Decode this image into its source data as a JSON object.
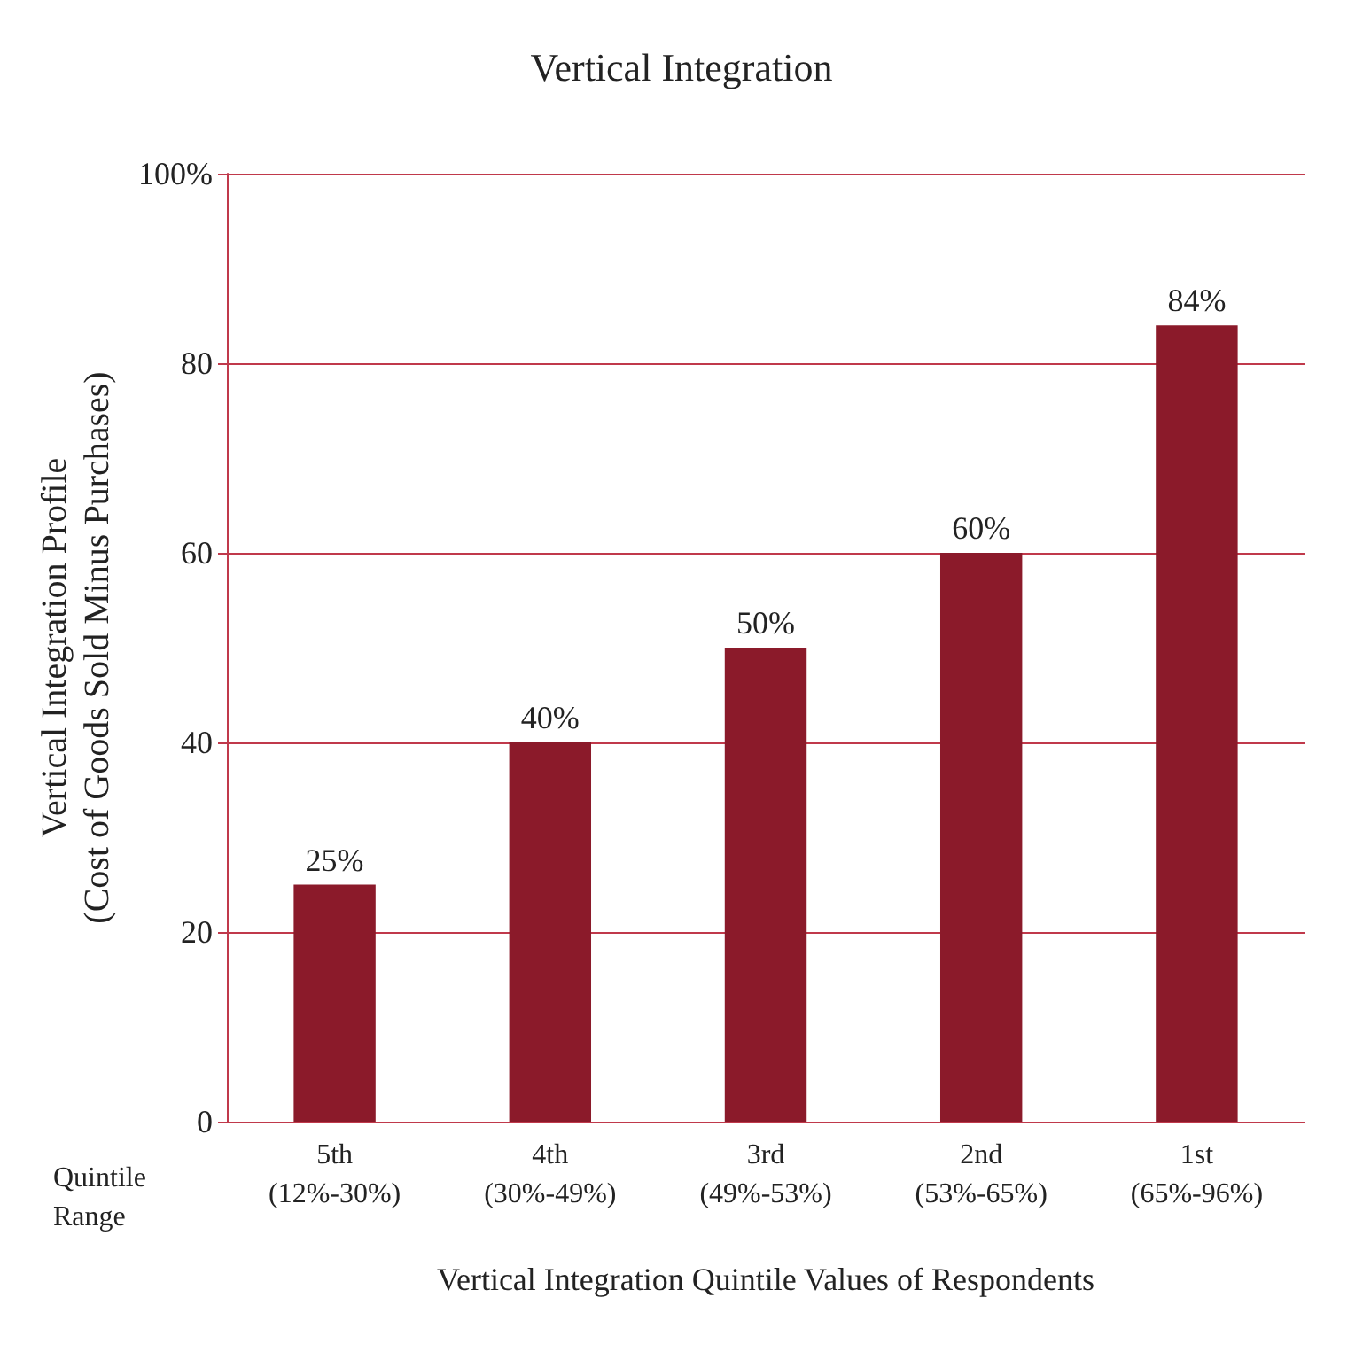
{
  "chart_data": {
    "type": "bar",
    "title": "Vertical Integration",
    "xlabel": "Vertical Integration Quintile Values of Respondents",
    "ylabel": "Vertical Integration Profile\n(Cost of Goods Sold Minus Purchases)",
    "categories": [
      "5th\n(12%-30%)",
      "4th\n(30%-49%)",
      "3rd\n(49%-53%)",
      "2nd\n(53%-65%)",
      "1st\n(65%-96%)"
    ],
    "values": [
      25,
      40,
      50,
      60,
      84
    ],
    "color": "#8b1a2a",
    "value_labels": [
      "25%",
      "40%",
      "50%",
      "60%",
      "84%"
    ],
    "ylim": [
      0,
      100
    ],
    "yticks": [
      0,
      20,
      40,
      60,
      80,
      {
        "value": 100,
        "label": "100%"
      }
    ],
    "grid": "y",
    "annotations": [
      "Quintile\nRange"
    ]
  }
}
